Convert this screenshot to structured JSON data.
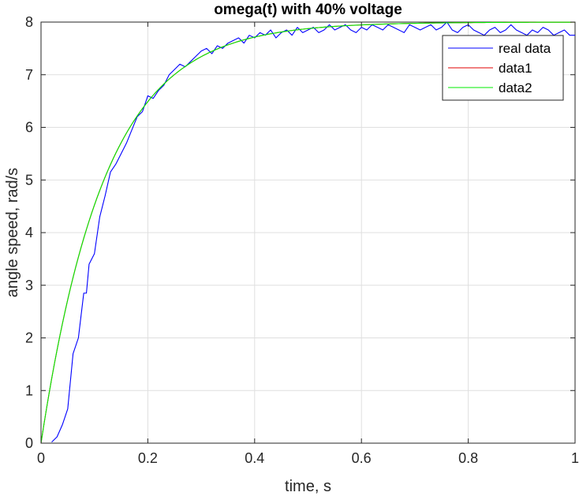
{
  "chart_data": {
    "type": "line",
    "title": "omega(t) with 40% voltage",
    "xlabel": "time, s",
    "ylabel": "angle speed, rad/s",
    "xlim": [
      0,
      1
    ],
    "ylim": [
      0,
      8
    ],
    "xticks": [
      0,
      0.2,
      0.4,
      0.6,
      0.8,
      1
    ],
    "xtick_labels": [
      "0",
      "0.2",
      "0.4",
      "0.6",
      "0.8",
      "1"
    ],
    "yticks": [
      0,
      1,
      2,
      3,
      4,
      5,
      6,
      7,
      8
    ],
    "ytick_labels": [
      "0",
      "1",
      "2",
      "3",
      "4",
      "5",
      "6",
      "7",
      "8"
    ],
    "grid": true,
    "legend_position": "top-right",
    "series": [
      {
        "name": "real data",
        "color": "#0000ff",
        "x": [
          0.02,
          0.03,
          0.04,
          0.05,
          0.06,
          0.07,
          0.08,
          0.085,
          0.09,
          0.095,
          0.1,
          0.11,
          0.12,
          0.13,
          0.14,
          0.15,
          0.16,
          0.17,
          0.18,
          0.19,
          0.2,
          0.21,
          0.22,
          0.23,
          0.24,
          0.25,
          0.26,
          0.27,
          0.28,
          0.29,
          0.3,
          0.31,
          0.32,
          0.33,
          0.34,
          0.35,
          0.36,
          0.37,
          0.38,
          0.39,
          0.4,
          0.41,
          0.42,
          0.43,
          0.44,
          0.45,
          0.46,
          0.47,
          0.48,
          0.49,
          0.5,
          0.51,
          0.52,
          0.53,
          0.54,
          0.55,
          0.56,
          0.57,
          0.58,
          0.59,
          0.6,
          0.61,
          0.62,
          0.63,
          0.64,
          0.65,
          0.66,
          0.67,
          0.68,
          0.69,
          0.7,
          0.71,
          0.72,
          0.73,
          0.74,
          0.75,
          0.76,
          0.77,
          0.78,
          0.79,
          0.8,
          0.81,
          0.82,
          0.83,
          0.84,
          0.85,
          0.86,
          0.87,
          0.88,
          0.89,
          0.9,
          0.91,
          0.92,
          0.93,
          0.94,
          0.95,
          0.96,
          0.97,
          0.98,
          0.99,
          1.0
        ],
        "y": [
          0.02,
          0.12,
          0.35,
          0.65,
          1.7,
          2.0,
          2.85,
          2.85,
          3.4,
          3.5,
          3.6,
          4.3,
          4.7,
          5.15,
          5.3,
          5.5,
          5.7,
          5.95,
          6.2,
          6.3,
          6.6,
          6.55,
          6.7,
          6.8,
          7.0,
          7.1,
          7.2,
          7.15,
          7.25,
          7.35,
          7.45,
          7.5,
          7.4,
          7.55,
          7.5,
          7.6,
          7.65,
          7.7,
          7.6,
          7.75,
          7.7,
          7.8,
          7.75,
          7.85,
          7.7,
          7.8,
          7.85,
          7.75,
          7.9,
          7.8,
          7.85,
          7.9,
          7.8,
          7.85,
          7.95,
          7.85,
          7.9,
          7.95,
          7.85,
          7.8,
          7.9,
          7.85,
          7.95,
          7.9,
          7.85,
          7.95,
          7.9,
          7.85,
          7.8,
          7.95,
          7.9,
          7.85,
          7.9,
          7.95,
          7.85,
          7.9,
          8.0,
          7.85,
          7.8,
          7.9,
          7.95,
          7.85,
          7.8,
          7.75,
          7.85,
          7.9,
          7.8,
          7.85,
          7.95,
          7.85,
          7.8,
          7.75,
          7.85,
          7.8,
          7.9,
          7.85,
          7.75,
          7.8,
          7.85,
          7.75,
          7.75
        ]
      },
      {
        "name": "data1",
        "color": "#e00000",
        "tau": 0.12,
        "final_value": 8.0
      },
      {
        "name": "data2",
        "color": "#00ee00",
        "tau": 0.12,
        "final_value": 8.0
      }
    ]
  }
}
